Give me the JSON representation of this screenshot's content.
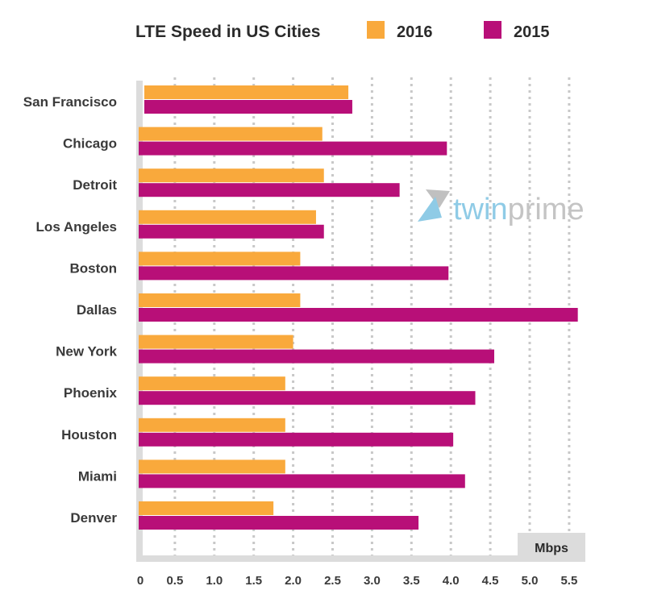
{
  "chart_data": {
    "type": "bar",
    "orientation": "horizontal",
    "title": "LTE Speed in US Cities",
    "xlabel": "Mbps",
    "ylabel": "",
    "xlim": [
      0,
      5.75
    ],
    "xticks": [
      0,
      0.5,
      1.0,
      1.5,
      2.0,
      2.5,
      3.0,
      3.5,
      4.0,
      4.5,
      5.0,
      5.5
    ],
    "xtick_labels": [
      "0",
      "0.5",
      "1.0",
      "1.5",
      "2.0",
      "2.5",
      "3.0",
      "3.5",
      "4.0",
      "4.5",
      "5.0",
      "5.5"
    ],
    "grid": "vertical dotted",
    "legend_position": "top-right",
    "categories": [
      "San Francisco",
      "Chicago",
      "Detroit",
      "Los Angeles",
      "Boston",
      "Dallas",
      "New York",
      "Phoenix",
      "Houston",
      "Miami",
      "Denver"
    ],
    "series": [
      {
        "name": "2016",
        "color": "#f9a93c",
        "values": [
          2.7,
          2.37,
          2.39,
          2.29,
          2.09,
          2.09,
          2.0,
          1.9,
          1.9,
          1.9,
          1.75
        ]
      },
      {
        "name": "2015",
        "color": "#b80f78",
        "values": [
          2.75,
          3.95,
          3.35,
          2.39,
          3.97,
          5.61,
          4.55,
          4.31,
          4.03,
          4.18,
          3.59
        ]
      }
    ],
    "watermark": {
      "part1": "twin",
      "part2": "prime"
    }
  }
}
